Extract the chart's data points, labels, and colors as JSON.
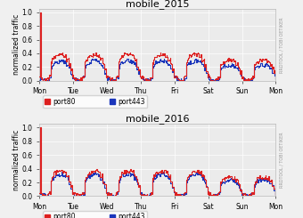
{
  "title_2015": "mobile_2015",
  "title_2016": "mobile_2016",
  "ylabel": "normalized traffic",
  "right_label": "RRDTOOL / TOBI OETIKER",
  "xtick_labels": [
    "Mon",
    "Tue",
    "Wed",
    "Thu",
    "Fri",
    "Sat",
    "Sun",
    "Mon"
  ],
  "ylim": [
    0.0,
    1.05
  ],
  "yticks": [
    0.0,
    0.2,
    0.4,
    0.6,
    0.8,
    1.0
  ],
  "legend_port80": "port80",
  "legend_port443": "port443",
  "color_port80": "#dd2020",
  "color_port443": "#1a35bb",
  "bg_color": "#ebebeb",
  "grid_color": "#ffffff",
  "fig_bg": "#f0f0f0",
  "title_fontsize": 8,
  "label_fontsize": 5.5,
  "tick_fontsize": 5.5,
  "linewidth": 0.8
}
